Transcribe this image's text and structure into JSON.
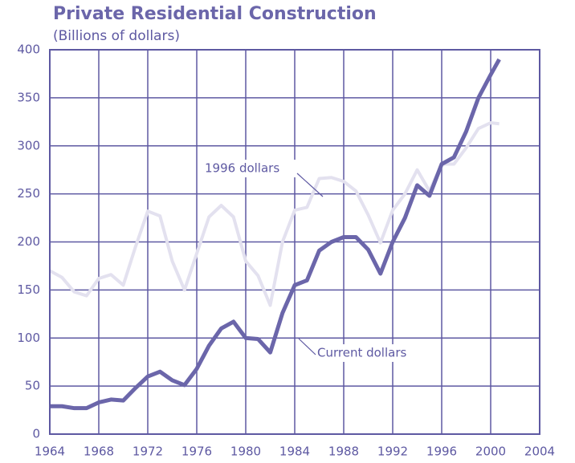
{
  "chart_data": {
    "type": "line",
    "title": "Private Residential Construction",
    "subtitle": "(Billions of dollars)",
    "x": [
      1964,
      1965,
      1966,
      1967,
      1968,
      1969,
      1970,
      1971,
      1972,
      1973,
      1974,
      1975,
      1976,
      1977,
      1978,
      1979,
      1980,
      1981,
      1982,
      1983,
      1984,
      1985,
      1986,
      1987,
      1988,
      1989,
      1990,
      1991,
      1992,
      1993,
      1994,
      1995,
      1996,
      1997,
      1998,
      1999,
      2000,
      2000.7
    ],
    "series": [
      {
        "name": "1996 dollars",
        "color": "#e3e1ef",
        "values": [
          170,
          163,
          148,
          144,
          162,
          166,
          155,
          195,
          232,
          227,
          180,
          150,
          188,
          226,
          238,
          226,
          180,
          165,
          134,
          200,
          233,
          236,
          266,
          267,
          263,
          253,
          228,
          199,
          233,
          250,
          275,
          253,
          281,
          281,
          298,
          318,
          324,
          323
        ]
      },
      {
        "name": "Current dollars",
        "color": "#6b66aa",
        "values": [
          29,
          29,
          27,
          27,
          33,
          36,
          35,
          48,
          60,
          65,
          56,
          51,
          68,
          92,
          110,
          117,
          100,
          99,
          85,
          126,
          155,
          160,
          191,
          200,
          205,
          205,
          192,
          167,
          200,
          225,
          259,
          248,
          281,
          288,
          315,
          350,
          374,
          390
        ]
      }
    ],
    "xlim": [
      1964,
      2004
    ],
    "xticks": [
      1964,
      1968,
      1972,
      1976,
      1980,
      1984,
      1988,
      1992,
      1996,
      2000,
      2004
    ],
    "ylim": [
      0,
      400
    ],
    "yticks": [
      0,
      50,
      100,
      150,
      200,
      250,
      300,
      350,
      400
    ],
    "grid": true,
    "grid_color": "#5e59a2"
  }
}
